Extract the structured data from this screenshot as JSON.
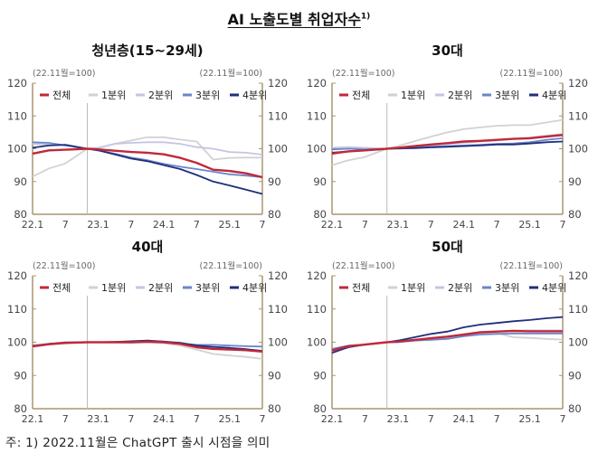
{
  "title": "AI 노출도별 취업자수",
  "title_sup": "1)",
  "footnote": "주: 1) 2022.11월은 ChatGPT 출시 시점을 의미",
  "chart_data": [
    {
      "type": "line",
      "title": "청년층(15~29세)",
      "unit_left": "(22.11월=100)",
      "unit_right": "(22.11월=100)",
      "ylim": [
        80,
        120
      ],
      "yticks": [
        80,
        90,
        100,
        110,
        120
      ],
      "xtick_labels": [
        "22.1",
        "7",
        "23.1",
        "7",
        "24.1",
        "7",
        "25.1",
        "7"
      ],
      "reference_line": "22.11",
      "legend": "top",
      "x": [
        "22.1",
        "22.4",
        "22.7",
        "22.11",
        "23.1",
        "23.4",
        "23.7",
        "23.10",
        "24.1",
        "24.4",
        "24.7",
        "24.10",
        "25.1",
        "25.4",
        "25.7"
      ],
      "series": [
        {
          "name": "전체",
          "color": "#c0283a",
          "values": [
            98.5,
            99.5,
            99.7,
            100,
            99.8,
            99.4,
            99,
            98.8,
            98.3,
            97.2,
            95.7,
            93.6,
            93.2,
            92.5,
            91.3
          ]
        },
        {
          "name": "1분위",
          "color": "#d2d2d2",
          "values": [
            91.5,
            94,
            95.5,
            100,
            100.3,
            101.5,
            102.5,
            103.5,
            103.5,
            102.8,
            102.2,
            96.7,
            97.2,
            97.3,
            97.3
          ]
        },
        {
          "name": "2분위",
          "color": "#c3c6e2",
          "values": [
            101.5,
            101.3,
            101,
            100,
            100.2,
            101.5,
            101.8,
            102,
            102,
            101.5,
            100.5,
            100,
            99,
            98.8,
            98.2
          ]
        },
        {
          "name": "3분위",
          "color": "#6b86c8",
          "values": [
            102,
            101.8,
            101,
            100,
            99.5,
            98.5,
            97.3,
            96.5,
            95.4,
            94.5,
            93.8,
            93,
            92.2,
            91.8,
            91.3
          ]
        },
        {
          "name": "4분위",
          "color": "#1f2f7a",
          "values": [
            100.3,
            101,
            101.2,
            100,
            99.5,
            98.3,
            97,
            96.2,
            95,
            93.8,
            92,
            90,
            88.8,
            87.5,
            86.2
          ]
        }
      ]
    },
    {
      "type": "line",
      "title": "30대",
      "unit_left": "(22.11월=100)",
      "unit_right": "(22.11월=100)",
      "ylim": [
        80,
        120
      ],
      "yticks": [
        80,
        90,
        100,
        110,
        120
      ],
      "xtick_labels": [
        "22.1",
        "7",
        "23.1",
        "7",
        "24.1",
        "7",
        "25.1",
        "7"
      ],
      "reference_line": "22.11",
      "legend": "top",
      "x": [
        "22.1",
        "22.4",
        "22.7",
        "22.11",
        "23.1",
        "23.4",
        "23.7",
        "23.10",
        "24.1",
        "24.4",
        "24.7",
        "24.10",
        "25.1",
        "25.4",
        "25.7"
      ],
      "series": [
        {
          "name": "전체",
          "color": "#c0283a",
          "values": [
            98.5,
            99.2,
            99.5,
            100,
            100.3,
            100.8,
            101.3,
            101.7,
            102.2,
            102.4,
            102.7,
            103,
            103.2,
            103.7,
            104.2
          ]
        },
        {
          "name": "1분위",
          "color": "#d2d2d2",
          "values": [
            95,
            96.5,
            97.5,
            100,
            100.8,
            102.3,
            103.7,
            105,
            106,
            106.5,
            107,
            107.2,
            107.2,
            108,
            108.8
          ]
        },
        {
          "name": "2분위",
          "color": "#c3c6e2",
          "values": [
            100.3,
            100.5,
            100.3,
            100,
            100.3,
            100.6,
            101,
            101.4,
            101.8,
            102.2,
            102.5,
            103,
            103.4,
            104,
            104.5
          ]
        },
        {
          "name": "3분위",
          "color": "#6b86c8",
          "values": [
            99.8,
            100,
            99.8,
            100,
            100,
            100.3,
            100.6,
            100.8,
            101,
            101.2,
            101.5,
            101.6,
            102,
            102.7,
            103.2
          ]
        },
        {
          "name": "4분위",
          "color": "#1f2f7a",
          "values": [
            98.8,
            99.2,
            99.5,
            100,
            100.1,
            100.2,
            100.4,
            100.6,
            100.8,
            101,
            101.3,
            101.3,
            101.6,
            102,
            102.2
          ]
        }
      ]
    },
    {
      "type": "line",
      "title": "40대",
      "unit_left": "(22.11월=100)",
      "unit_right": "(22.11월=100)",
      "ylim": [
        80,
        120
      ],
      "yticks": [
        80,
        90,
        100,
        110,
        120
      ],
      "xtick_labels": [
        "22.1",
        "7",
        "23.1",
        "7",
        "24.1",
        "7",
        "25.1",
        "7"
      ],
      "reference_line": "22.11",
      "legend": "top",
      "x": [
        "22.1",
        "22.4",
        "22.7",
        "22.11",
        "23.1",
        "23.4",
        "23.7",
        "23.10",
        "24.1",
        "24.4",
        "24.7",
        "24.10",
        "25.1",
        "25.4",
        "25.7"
      ],
      "series": [
        {
          "name": "전체",
          "color": "#c0283a",
          "values": [
            98.8,
            99.4,
            99.8,
            100,
            100,
            100,
            100,
            100.2,
            100,
            99.5,
            98.5,
            98,
            97.8,
            97.6,
            97.2
          ]
        },
        {
          "name": "1분위",
          "color": "#d2d2d2",
          "values": [
            98.5,
            99.3,
            99.6,
            100,
            100,
            100,
            99.8,
            99.8,
            99.7,
            99,
            97.8,
            96.5,
            96,
            95.6,
            95
          ]
        },
        {
          "name": "2분위",
          "color": "#c3c6e2",
          "values": [
            98.7,
            99.5,
            99.8,
            100,
            100,
            100,
            100.2,
            100.3,
            100,
            99.5,
            98.8,
            98.4,
            98,
            97.8,
            97.5
          ]
        },
        {
          "name": "3분위",
          "color": "#6b86c8",
          "values": [
            99,
            99.5,
            100,
            100,
            100,
            100,
            100.1,
            100.3,
            100.2,
            99.6,
            99.2,
            99.2,
            99,
            98.8,
            98.7
          ]
        },
        {
          "name": "4분위",
          "color": "#1f2f7a",
          "values": [
            98.8,
            99.5,
            99.8,
            100,
            100,
            100.1,
            100.3,
            100.5,
            100.2,
            99.8,
            99,
            98.6,
            98.3,
            97.9,
            97.4
          ]
        }
      ]
    },
    {
      "type": "line",
      "title": "50대",
      "unit_left": "(22.11월=100)",
      "unit_right": "(22.11월=100)",
      "ylim": [
        80,
        120
      ],
      "yticks": [
        80,
        90,
        100,
        110,
        120
      ],
      "xtick_labels": [
        "22.1",
        "7",
        "23.1",
        "7",
        "24.1",
        "7",
        "25.1",
        "7"
      ],
      "reference_line": "22.11",
      "legend": "top",
      "x": [
        "22.1",
        "22.4",
        "22.7",
        "22.11",
        "23.1",
        "23.4",
        "23.7",
        "23.10",
        "24.1",
        "24.4",
        "24.7",
        "24.10",
        "25.1",
        "25.4",
        "25.7"
      ],
      "series": [
        {
          "name": "전체",
          "color": "#c0283a",
          "values": [
            97.5,
            98.8,
            99.3,
            100,
            100.2,
            100.7,
            101.2,
            101.7,
            102.3,
            103,
            103.2,
            103.4,
            103.3,
            103.3,
            103.3
          ]
        },
        {
          "name": "1분위",
          "color": "#d2d2d2",
          "values": [
            97,
            98.5,
            99.2,
            100,
            100.2,
            100.5,
            101,
            101.5,
            102.3,
            102.8,
            102.8,
            101.5,
            101.3,
            101,
            100.8
          ]
        },
        {
          "name": "2분위",
          "color": "#c3c6e2",
          "values": [
            97.3,
            98.7,
            99.2,
            100,
            100.2,
            100.6,
            101.2,
            101.6,
            102.3,
            103,
            103.2,
            103.5,
            103.6,
            103.6,
            103.6
          ]
        },
        {
          "name": "3분위",
          "color": "#6b86c8",
          "values": [
            98,
            99,
            99.3,
            100,
            100,
            100.5,
            100.7,
            101,
            101.8,
            102.3,
            102.5,
            102.6,
            102.6,
            102.6,
            102.6
          ]
        },
        {
          "name": "4분위",
          "color": "#1f2f7a",
          "values": [
            96.8,
            98.5,
            99.3,
            100,
            100.5,
            101.5,
            102.5,
            103.2,
            104.5,
            105.3,
            105.8,
            106.3,
            106.7,
            107.2,
            107.6
          ]
        }
      ]
    }
  ]
}
